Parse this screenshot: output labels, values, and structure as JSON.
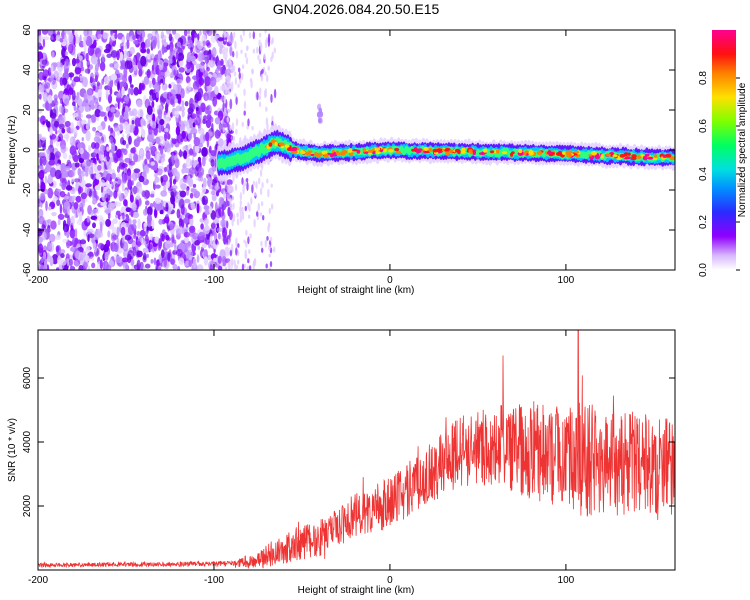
{
  "figure_title": "GN04.2026.084.20.50.E15",
  "chart_data": [
    {
      "type": "heatmap",
      "title": "GN04.2026.084.20.50.E15",
      "xlabel": "Height of straight line (km)",
      "ylabel": "Frequency (Hz)",
      "xlim": [
        -200,
        162
      ],
      "ylim": [
        -60,
        60
      ],
      "x_ticks": [
        -200,
        -100,
        0,
        100
      ],
      "x_tick_labels": [
        "-200",
        "-100",
        "0",
        "100"
      ],
      "y_ticks": [
        -60,
        -40,
        -20,
        0,
        20,
        40,
        60
      ],
      "y_tick_labels": [
        "-60",
        "-40",
        "-20",
        "0",
        "20",
        "40",
        "60"
      ],
      "colorbar": {
        "label": "Normalized spectral amplitude",
        "range": [
          0,
          1
        ],
        "ticks": [
          0,
          0.2,
          0.4,
          0.6,
          0.8
        ],
        "tick_labels": [
          "0.0",
          "0.2",
          "0.4",
          "0.6",
          "0.8"
        ],
        "colormap": [
          "#ffffff",
          "#8000ff",
          "#2020ff",
          "#00ccff",
          "#00ff80",
          "#80ff00",
          "#ffdd00",
          "#ff8000",
          "#ff0000",
          "#ff0090"
        ]
      },
      "noise_region_x": [
        -200,
        -95
      ],
      "signal_onset_x": -97,
      "signal_track": [
        {
          "x": -97,
          "f": -7
        },
        {
          "x": -80,
          "f": -3
        },
        {
          "x": -65,
          "f": 4
        },
        {
          "x": -55,
          "f": 0
        },
        {
          "x": -40,
          "f": -2
        },
        {
          "x": 0,
          "f": 0
        },
        {
          "x": 50,
          "f": -1
        },
        {
          "x": 100,
          "f": -2
        },
        {
          "x": 130,
          "f": -3
        },
        {
          "x": 162,
          "f": -4
        }
      ],
      "secondary_feature": {
        "x": -40,
        "f": 18
      }
    },
    {
      "type": "line",
      "xlabel": "Height of straight line (km)",
      "ylabel": "SNR (10 * v/v)",
      "xlim": [
        -200,
        162
      ],
      "ylim": [
        0,
        7500
      ],
      "x_ticks": [
        -200,
        -100,
        0,
        100
      ],
      "x_tick_labels": [
        "-200",
        "-100",
        "0",
        "100"
      ],
      "y_ticks": [
        2000,
        4000,
        6000
      ],
      "y_tick_labels": [
        "2000",
        "4000",
        "6000"
      ],
      "series_color": "#ee3333",
      "trend": [
        {
          "x": -200,
          "y": 150
        },
        {
          "x": -90,
          "y": 200
        },
        {
          "x": -75,
          "y": 300
        },
        {
          "x": -60,
          "y": 700
        },
        {
          "x": -40,
          "y": 1000
        },
        {
          "x": -20,
          "y": 1700
        },
        {
          "x": 0,
          "y": 2100
        },
        {
          "x": 20,
          "y": 2900
        },
        {
          "x": 40,
          "y": 3700
        },
        {
          "x": 60,
          "y": 3900
        },
        {
          "x": 80,
          "y": 3700
        },
        {
          "x": 100,
          "y": 3500
        },
        {
          "x": 120,
          "y": 3400
        },
        {
          "x": 140,
          "y": 3300
        },
        {
          "x": 162,
          "y": 3200
        }
      ],
      "noise_amplitude": [
        {
          "x": -200,
          "y": 60
        },
        {
          "x": -90,
          "y": 80
        },
        {
          "x": -60,
          "y": 500
        },
        {
          "x": -20,
          "y": 700
        },
        {
          "x": 20,
          "y": 900
        },
        {
          "x": 60,
          "y": 1300
        },
        {
          "x": 110,
          "y": 1800
        },
        {
          "x": 162,
          "y": 1500
        }
      ],
      "peak": {
        "x": 107,
        "y": 7500
      }
    }
  ]
}
